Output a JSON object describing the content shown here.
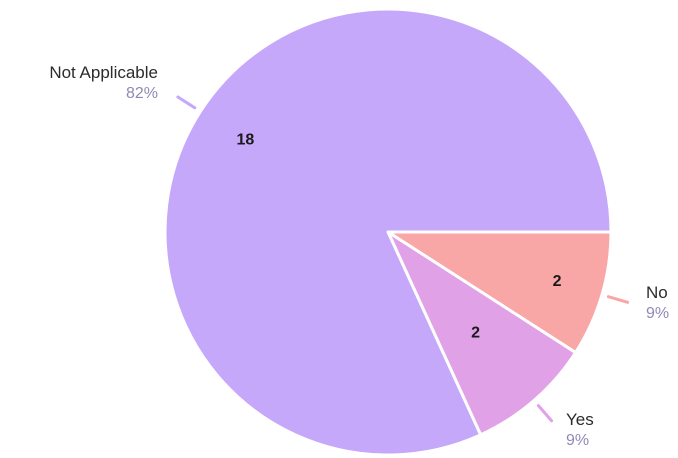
{
  "chart_data": {
    "type": "pie",
    "title": "",
    "categories": [
      "No",
      "Yes",
      "Not Applicable"
    ],
    "values": [
      2,
      2,
      18
    ],
    "percent_labels": [
      "9%",
      "9%",
      "82%"
    ],
    "colors": [
      "#f8a6a6",
      "#e1a1e6",
      "#c6a8fb"
    ],
    "legend": "none"
  }
}
